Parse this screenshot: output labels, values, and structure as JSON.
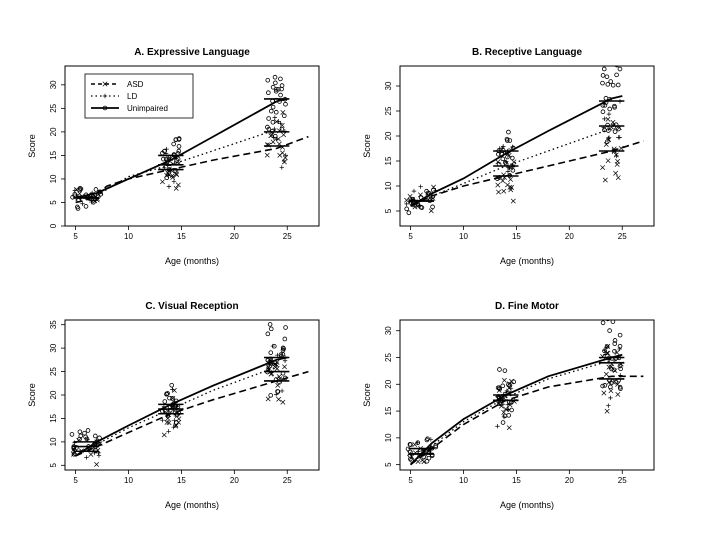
{
  "chart_data": [
    {
      "type": "scatter",
      "title": "A. Expressive Language",
      "xlabel": "Age (months)",
      "ylabel": "Score",
      "xlim": [
        4,
        28
      ],
      "ylim": [
        0,
        34
      ],
      "xticks": [
        5,
        10,
        15,
        20,
        25
      ],
      "yticks": [
        0,
        5,
        10,
        15,
        20,
        25,
        30
      ],
      "xtick_labels": [
        "5",
        "10",
        "15",
        "20",
        "25"
      ],
      "ytick_labels": [
        "0",
        "5",
        "10",
        "15",
        "20",
        "25",
        "30"
      ],
      "legend": {
        "position": "top-left",
        "entries": [
          {
            "label": "ASD",
            "line": "dashed",
            "marker": "x"
          },
          {
            "label": "LD",
            "line": "dotted",
            "marker": "+"
          },
          {
            "label": "Unimpaired",
            "line": "solid",
            "marker": "o"
          }
        ]
      },
      "series": [
        {
          "name": "ASD",
          "line": "dashed",
          "marker": "x",
          "fit": [
            [
              5,
              5.0
            ],
            [
              6,
              5.5
            ],
            [
              8,
              8.5
            ],
            [
              10,
              10.0
            ],
            [
              14,
              12.0
            ],
            [
              18,
              14.0
            ],
            [
              24,
              16.5
            ],
            [
              27,
              19.0
            ]
          ],
          "cluster_means": [
            [
              6,
              6
            ],
            [
              14,
              12
            ],
            [
              24,
              17
            ]
          ]
        },
        {
          "name": "LD",
          "line": "dotted",
          "marker": "+",
          "fit": [
            [
              5,
              5.5
            ],
            [
              7,
              6.5
            ],
            [
              10,
              10.5
            ],
            [
              14,
              13.0
            ],
            [
              18,
              16.0
            ],
            [
              24,
              20.5
            ]
          ],
          "cluster_means": [
            [
              6,
              6
            ],
            [
              14,
              13
            ],
            [
              24,
              20
            ]
          ]
        },
        {
          "name": "Unimpaired",
          "line": "solid",
          "marker": "o",
          "fit": [
            [
              5,
              6.0
            ],
            [
              7,
              7.0
            ],
            [
              10,
              10.0
            ],
            [
              14,
              14.0
            ],
            [
              18,
              19.0
            ],
            [
              24,
              26.5
            ],
            [
              25,
              27.0
            ]
          ],
          "cluster_means": [
            [
              6,
              6
            ],
            [
              14,
              15
            ],
            [
              24,
              27
            ]
          ]
        }
      ]
    },
    {
      "type": "scatter",
      "title": "B. Receptive Language",
      "xlabel": "Age (months)",
      "ylabel": "Score",
      "xlim": [
        4,
        28
      ],
      "ylim": [
        2,
        34
      ],
      "xticks": [
        5,
        10,
        15,
        20,
        25
      ],
      "yticks": [
        5,
        10,
        15,
        20,
        25,
        30
      ],
      "xtick_labels": [
        "5",
        "10",
        "15",
        "20",
        "25"
      ],
      "ytick_labels": [
        "5",
        "10",
        "15",
        "20",
        "25",
        "30"
      ],
      "series": [
        {
          "name": "ASD",
          "line": "dashed",
          "marker": "x",
          "fit": [
            [
              5,
              6.0
            ],
            [
              7,
              8.0
            ],
            [
              10,
              10.0
            ],
            [
              14,
              12.0
            ],
            [
              18,
              14.0
            ],
            [
              24,
              17.0
            ],
            [
              27,
              19.0
            ]
          ],
          "cluster_means": [
            [
              6,
              7
            ],
            [
              14,
              12
            ],
            [
              24,
              17
            ]
          ]
        },
        {
          "name": "LD",
          "line": "dotted",
          "marker": "+",
          "fit": [
            [
              5,
              6.0
            ],
            [
              7,
              8.0
            ],
            [
              10,
              10.5
            ],
            [
              14,
              14.0
            ],
            [
              18,
              17.0
            ],
            [
              24,
              21.5
            ]
          ],
          "cluster_means": [
            [
              6,
              7
            ],
            [
              14,
              14
            ],
            [
              24,
              22
            ]
          ]
        },
        {
          "name": "Unimpaired",
          "line": "solid",
          "marker": "o",
          "fit": [
            [
              5,
              6.0
            ],
            [
              7,
              8.5
            ],
            [
              10,
              11.5
            ],
            [
              14,
              16.5
            ],
            [
              18,
              21.0
            ],
            [
              24,
              27.5
            ],
            [
              25,
              28.0
            ]
          ],
          "cluster_means": [
            [
              6,
              7
            ],
            [
              14,
              17
            ],
            [
              24,
              27
            ]
          ]
        }
      ]
    },
    {
      "type": "scatter",
      "title": "C. Visual Reception",
      "xlabel": "Age (months)",
      "ylabel": "Score",
      "xlim": [
        4,
        28
      ],
      "ylim": [
        4,
        36
      ],
      "xticks": [
        5,
        10,
        15,
        20,
        25
      ],
      "yticks": [
        5,
        10,
        15,
        20,
        25,
        30,
        35
      ],
      "xtick_labels": [
        "5",
        "10",
        "15",
        "20",
        "25"
      ],
      "ytick_labels": [
        "5",
        "10",
        "15",
        "20",
        "25",
        "30",
        "35"
      ],
      "series": [
        {
          "name": "ASD",
          "line": "dashed",
          "marker": "x",
          "fit": [
            [
              5,
              7.0
            ],
            [
              7,
              9.0
            ],
            [
              10,
              12.0
            ],
            [
              14,
              16.0
            ],
            [
              18,
              19.0
            ],
            [
              24,
              23.0
            ],
            [
              27,
              25.0
            ]
          ],
          "cluster_means": [
            [
              6,
              8
            ],
            [
              14,
              16
            ],
            [
              24,
              23
            ]
          ]
        },
        {
          "name": "LD",
          "line": "dotted",
          "marker": "+",
          "fit": [
            [
              5,
              7.0
            ],
            [
              7,
              9.5
            ],
            [
              10,
              13.0
            ],
            [
              14,
              17.0
            ],
            [
              18,
              21.0
            ],
            [
              24,
              26.0
            ]
          ],
          "cluster_means": [
            [
              6,
              9
            ],
            [
              14,
              17
            ],
            [
              24,
              25
            ]
          ]
        },
        {
          "name": "Unimpaired",
          "line": "solid",
          "marker": "o",
          "fit": [
            [
              5,
              7.0
            ],
            [
              7,
              10.0
            ],
            [
              10,
              13.5
            ],
            [
              14,
              18.0
            ],
            [
              18,
              22.0
            ],
            [
              24,
              27.5
            ],
            [
              25,
              28.0
            ]
          ],
          "cluster_means": [
            [
              6,
              10
            ],
            [
              14,
              18
            ],
            [
              24,
              28
            ]
          ]
        }
      ]
    },
    {
      "type": "scatter",
      "title": "D. Fine Motor",
      "xlabel": "Age (months)",
      "ylabel": "Score",
      "xlim": [
        4,
        28
      ],
      "ylim": [
        4,
        32
      ],
      "xticks": [
        5,
        10,
        15,
        20,
        25
      ],
      "yticks": [
        5,
        10,
        15,
        20,
        25,
        30
      ],
      "xtick_labels": [
        "5",
        "10",
        "15",
        "20",
        "25"
      ],
      "ytick_labels": [
        "5",
        "10",
        "15",
        "20",
        "25",
        "30"
      ],
      "series": [
        {
          "name": "ASD",
          "line": "dashed",
          "marker": "x",
          "fit": [
            [
              5,
              5.0
            ],
            [
              7,
              8.0
            ],
            [
              10,
              12.5
            ],
            [
              14,
              17.0
            ],
            [
              18,
              19.5
            ],
            [
              24,
              21.5
            ],
            [
              27,
              21.5
            ]
          ],
          "cluster_means": [
            [
              6,
              7
            ],
            [
              14,
              17
            ],
            [
              24,
              21
            ]
          ]
        },
        {
          "name": "LD",
          "line": "dotted",
          "marker": "+",
          "fit": [
            [
              5,
              5.0
            ],
            [
              7,
              8.5
            ],
            [
              10,
              13.0
            ],
            [
              14,
              17.5
            ],
            [
              18,
              21.0
            ],
            [
              24,
              24.5
            ]
          ],
          "cluster_means": [
            [
              6,
              7
            ],
            [
              14,
              17
            ],
            [
              24,
              24
            ]
          ]
        },
        {
          "name": "Unimpaired",
          "line": "solid",
          "marker": "o",
          "fit": [
            [
              5,
              5.0
            ],
            [
              7,
              9.0
            ],
            [
              10,
              13.5
            ],
            [
              14,
              18.0
            ],
            [
              18,
              21.5
            ],
            [
              24,
              25.0
            ],
            [
              25,
              25.5
            ]
          ],
          "cluster_means": [
            [
              6,
              8
            ],
            [
              14,
              18
            ],
            [
              24,
              25
            ]
          ]
        }
      ]
    }
  ]
}
